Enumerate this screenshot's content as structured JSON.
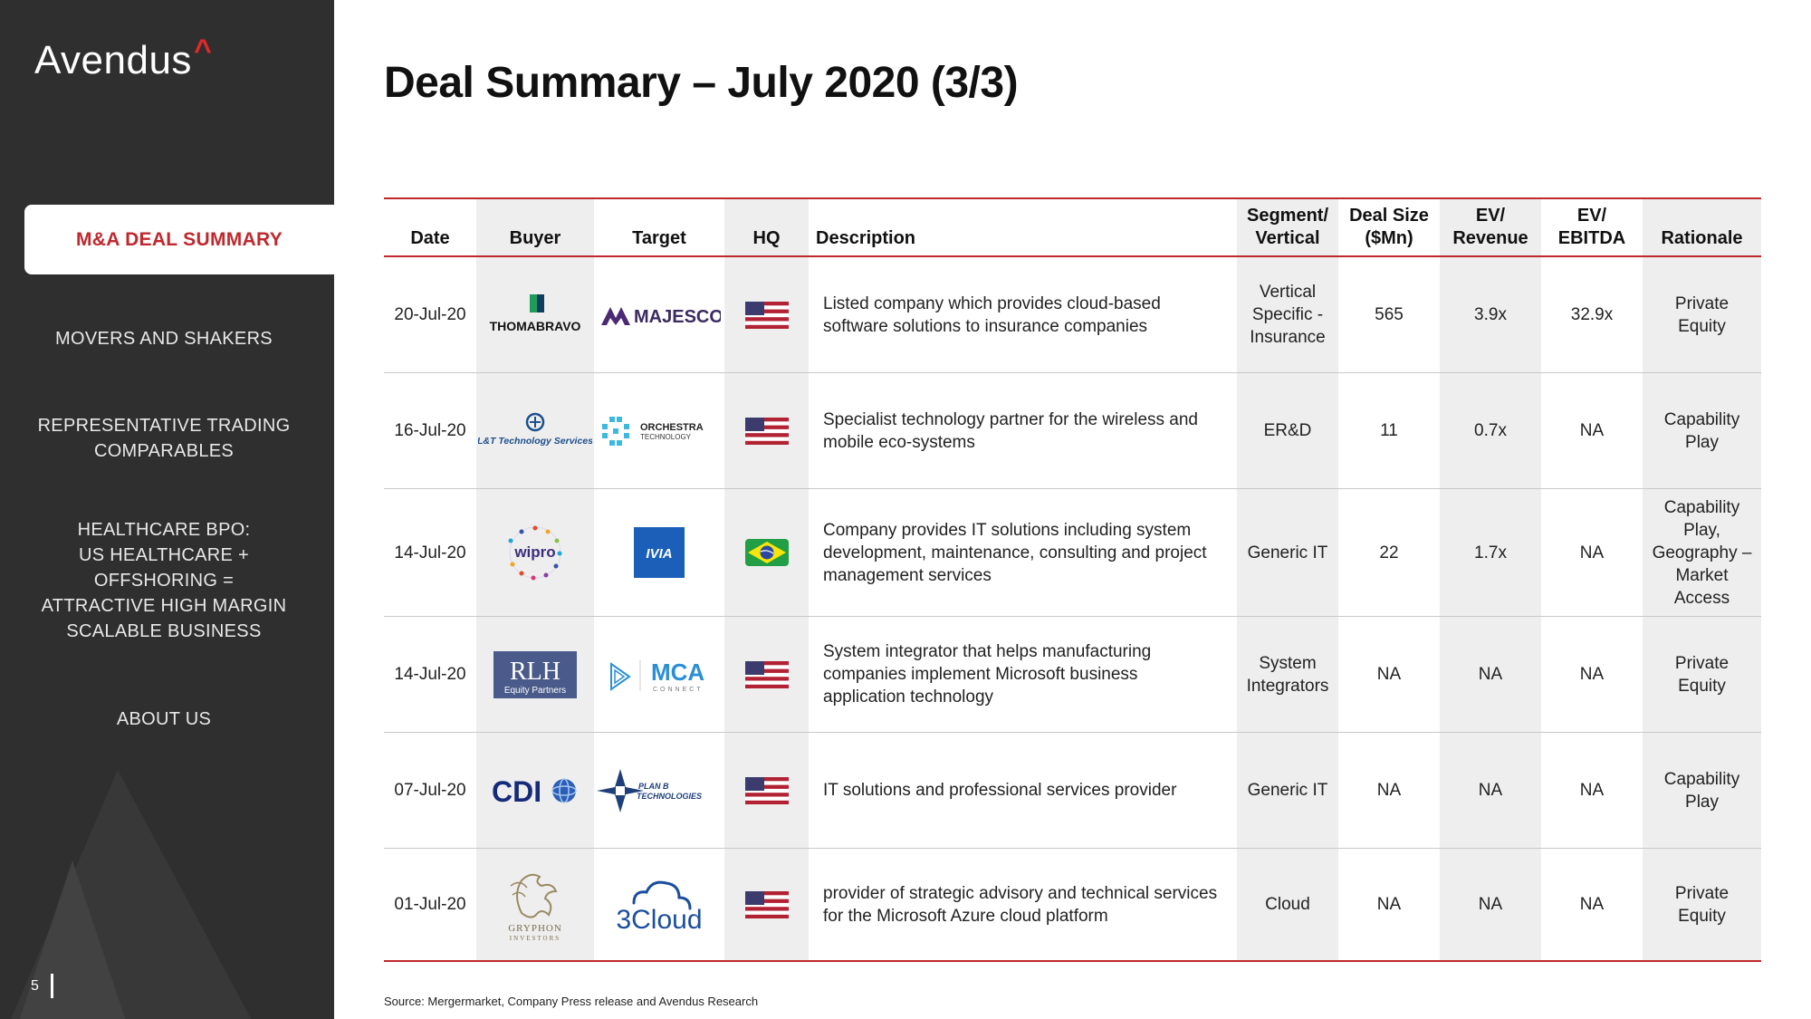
{
  "sidebar": {
    "logo_text": "Avendus",
    "logo_caret": "^",
    "nav": [
      {
        "label": "M&A DEAL SUMMARY",
        "active": true
      },
      {
        "label": "MOVERS AND SHAKERS"
      },
      {
        "label_lines": [
          "REPRESENTATIVE TRADING",
          "COMPARABLES"
        ]
      },
      {
        "label_lines": [
          "HEALTHCARE BPO:",
          "US HEALTHCARE +",
          "OFFSHORING =",
          "ATTRACTIVE HIGH MARGIN",
          "SCALABLE BUSINESS"
        ]
      },
      {
        "label": "ABOUT US"
      }
    ],
    "page_number": "5"
  },
  "title": "Deal Summary – July 2020 (3/3)",
  "table": {
    "headers": {
      "date": "Date",
      "buyer": "Buyer",
      "target": "Target",
      "hq": "HQ",
      "description": "Description",
      "segment": [
        "Segment/",
        "Vertical"
      ],
      "deal_size": [
        "Deal Size",
        "($Mn)"
      ],
      "ev_revenue": [
        "EV/",
        "Revenue"
      ],
      "ev_ebitda": [
        "EV/",
        "EBITDA"
      ],
      "rationale": "Rationale"
    },
    "rows": [
      {
        "date": "20-Jul-20",
        "buyer_logo": "THOMABRAVO",
        "target_logo": "MAJESCO",
        "hq_flag": "us-flag",
        "description_lines": [
          "Listed company which provides cloud-based",
          "software solutions to insurance companies"
        ],
        "segment_lines": [
          "Vertical",
          "Specific -",
          "Insurance"
        ],
        "deal_size": "565",
        "ev_revenue": "3.9x",
        "ev_ebitda": "32.9x",
        "rationale_lines": [
          "Private",
          "Equity"
        ]
      },
      {
        "date": "16-Jul-20",
        "buyer_logo": "L&T Technology Services",
        "target_logo": [
          "ORCHESTRA",
          "TECHNOLOGY"
        ],
        "hq_flag": "us-flag",
        "description_lines": [
          "Specialist technology partner for the wireless and",
          "mobile eco-systems"
        ],
        "segment_lines": [
          "ER&D"
        ],
        "deal_size": "11",
        "ev_revenue": "0.7x",
        "ev_ebitda": "NA",
        "rationale_lines": [
          "Capability",
          "Play"
        ]
      },
      {
        "date": "14-Jul-20",
        "buyer_logo": "wipro",
        "target_logo": "IVIA",
        "hq_flag": "brazil-flag",
        "description_lines": [
          "Company provides IT solutions including system",
          "development, maintenance, consulting and project",
          "management services"
        ],
        "segment_lines": [
          "Generic IT"
        ],
        "deal_size": "22",
        "ev_revenue": "1.7x",
        "ev_ebitda": "NA",
        "rationale_lines": [
          "Capability",
          "Play,",
          "Geography –",
          "Market",
          "Access"
        ]
      },
      {
        "date": "14-Jul-20",
        "buyer_logo": [
          "RLH",
          "Equity Partners"
        ],
        "target_logo": [
          "MCA",
          "CONNECT"
        ],
        "hq_flag": "us-flag",
        "description_lines": [
          "System integrator that helps manufacturing",
          "companies implement Microsoft business",
          "application technology"
        ],
        "segment_lines": [
          "System",
          "Integrators"
        ],
        "deal_size": "NA",
        "ev_revenue": "NA",
        "ev_ebitda": "NA",
        "rationale_lines": [
          "Private",
          "Equity"
        ]
      },
      {
        "date": "07-Jul-20",
        "buyer_logo": "CDI",
        "target_logo": [
          "PLAN B",
          "TECHNOLOGIES"
        ],
        "hq_flag": "us-flag",
        "description_lines": [
          "IT solutions and professional services provider"
        ],
        "segment_lines": [
          "Generic IT"
        ],
        "deal_size": "NA",
        "ev_revenue": "NA",
        "ev_ebitda": "NA",
        "rationale_lines": [
          "Capability",
          "Play"
        ]
      },
      {
        "date": "01-Jul-20",
        "buyer_logo": [
          "GRYPHON",
          "INVESTORS"
        ],
        "target_logo": "3Cloud",
        "hq_flag": "us-flag",
        "description_lines": [
          "provider of strategic advisory and technical services",
          "for the Microsoft Azure cloud platform"
        ],
        "segment_lines": [
          "Cloud"
        ],
        "deal_size": "NA",
        "ev_revenue": "NA",
        "ev_ebitda": "NA",
        "rationale_lines": [
          "Private",
          "Equity"
        ]
      }
    ]
  },
  "source": "Source: Mergermarket, Company Press release and Avendus Research",
  "colors": {
    "accent_red": "#c0282d",
    "sidebar_bg": "#2f2f2f",
    "shade": "#eeeeee"
  }
}
